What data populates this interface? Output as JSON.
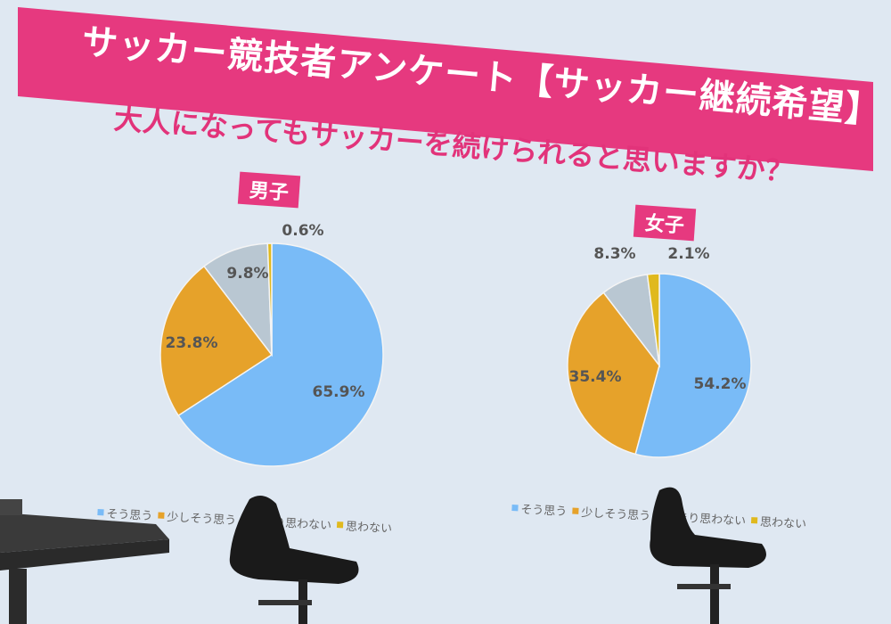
{
  "title": "サッカー競技者アンケート【サッカー継続希望】",
  "question": "大人になってもサッカーを続けられると思いますか？",
  "colors": {
    "accent": "#e6397f",
    "s1": "#79bbf7",
    "s2": "#e6a22a",
    "s3": "#b9c7d2",
    "s4": "#e0b91e"
  },
  "chart_data": [
    {
      "type": "pie",
      "title": "男子",
      "categories": [
        "そう思う",
        "少しそう思う",
        "あまり思わない",
        "思わない"
      ],
      "values": [
        65.9,
        23.8,
        9.8,
        0.6
      ],
      "labels": [
        "65.9%",
        "23.8%",
        "9.8%",
        "0.6%"
      ],
      "legend": "bottom"
    },
    {
      "type": "pie",
      "title": "女子",
      "categories": [
        "そう思う",
        "少しそう思う",
        "あまり思わない",
        "思わない"
      ],
      "values": [
        54.2,
        35.4,
        8.3,
        2.1
      ],
      "labels": [
        "54.2%",
        "35.4%",
        "8.3%",
        "2.1%"
      ],
      "legend": "bottom"
    }
  ]
}
